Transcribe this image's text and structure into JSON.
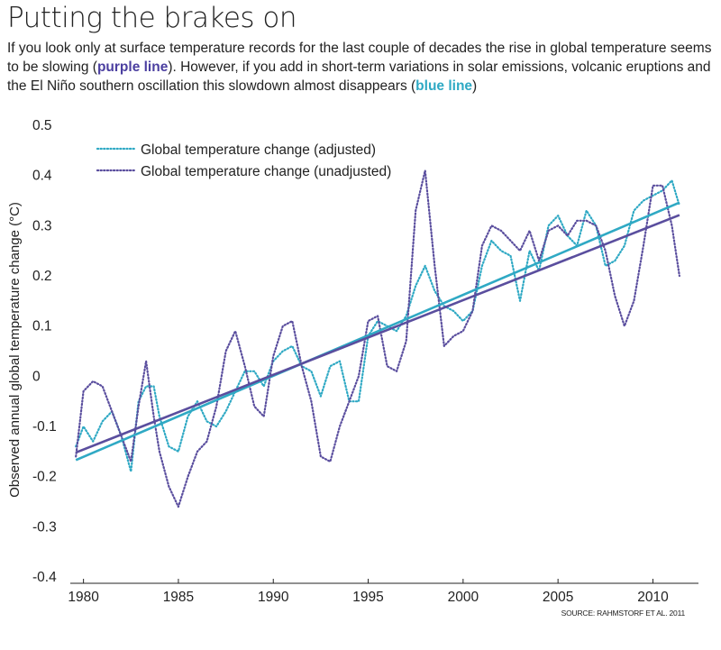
{
  "header": {
    "title": "Putting the brakes on",
    "subtitle_parts": [
      "If you look only at surface temperature records for the last couple of decades the rise in global temperature seems to be slowing (",
      "purple line",
      "). However, if you add in short-term variations in solar emissions, volcanic eruptions and the El Niño southern oscillation this slowdown almost disappears (",
      "blue line",
      ")"
    ]
  },
  "colors": {
    "purple": "#5a4e9e",
    "blue": "#2fa9c4",
    "purple_text": "#4b3fa0"
  },
  "chart_data": {
    "type": "line",
    "ylabel": "Observed annual global temperature change (°C)",
    "xlabel": "",
    "xlim": [
      1979.4,
      2012.4
    ],
    "ylim": [
      -0.4,
      0.5
    ],
    "x_ticks": [
      1980,
      1985,
      1990,
      1995,
      2000,
      2005,
      2010
    ],
    "y_ticks": [
      "0.5",
      "0.4",
      "0.3",
      "0.2",
      "0.1",
      "0",
      "-0.1",
      "-0.2",
      "-0.3",
      "-0.4"
    ],
    "y_tick_values": [
      0.5,
      0.4,
      0.3,
      0.2,
      0.1,
      0,
      -0.1,
      -0.2,
      -0.3,
      -0.4
    ],
    "grid": false,
    "legend_position": "top-left",
    "legend": [
      "Global temperature change (adjusted)",
      "Global temperature change (unadjusted)"
    ],
    "source": "SOURCE: RAHMSTORF ET AL. 2011",
    "series": [
      {
        "name": "Global temperature change (adjusted)",
        "style": "dotted",
        "color": "#2fa9c4",
        "x": [
          1979.6,
          1980.0,
          1980.5,
          1981.0,
          1981.5,
          1982.0,
          1982.5,
          1982.9,
          1983.3,
          1983.7,
          1984.0,
          1984.5,
          1985.0,
          1985.5,
          1986.0,
          1986.5,
          1987.0,
          1987.5,
          1988.0,
          1988.5,
          1989.0,
          1989.5,
          1990.0,
          1990.5,
          1991.0,
          1991.5,
          1992.0,
          1992.5,
          1993.0,
          1993.5,
          1994.0,
          1994.5,
          1995.0,
          1995.5,
          1996.0,
          1996.5,
          1997.0,
          1997.5,
          1998.0,
          1998.5,
          1999.0,
          1999.5,
          2000.0,
          2000.5,
          2001.0,
          2001.5,
          2002.0,
          2002.5,
          2003.0,
          2003.5,
          2004.0,
          2004.5,
          2005.0,
          2005.5,
          2006.0,
          2006.5,
          2007.0,
          2007.5,
          2008.0,
          2008.5,
          2009.0,
          2009.5,
          2010.0,
          2010.5,
          2011.0,
          2011.4
        ],
        "y": [
          -0.14,
          -0.1,
          -0.13,
          -0.09,
          -0.07,
          -0.12,
          -0.19,
          -0.05,
          -0.02,
          -0.02,
          -0.08,
          -0.14,
          -0.15,
          -0.08,
          -0.05,
          -0.09,
          -0.1,
          -0.07,
          -0.03,
          0.01,
          0.01,
          -0.02,
          0.03,
          0.05,
          0.06,
          0.02,
          0.01,
          -0.04,
          0.02,
          0.03,
          -0.05,
          -0.05,
          0.08,
          0.11,
          0.1,
          0.09,
          0.12,
          0.18,
          0.22,
          0.17,
          0.14,
          0.13,
          0.11,
          0.13,
          0.22,
          0.27,
          0.25,
          0.24,
          0.15,
          0.25,
          0.21,
          0.3,
          0.32,
          0.28,
          0.26,
          0.33,
          0.3,
          0.22,
          0.23,
          0.26,
          0.33,
          0.35,
          0.36,
          0.37,
          0.39,
          0.34
        ]
      },
      {
        "name": "Global temperature change (unadjusted)",
        "style": "dotted",
        "color": "#5a4e9e",
        "x": [
          1979.6,
          1980.0,
          1980.5,
          1981.0,
          1981.5,
          1982.0,
          1982.5,
          1982.9,
          1983.3,
          1983.7,
          1984.0,
          1984.5,
          1985.0,
          1985.5,
          1986.0,
          1986.5,
          1987.0,
          1987.5,
          1988.0,
          1988.5,
          1989.0,
          1989.5,
          1990.0,
          1990.5,
          1991.0,
          1991.5,
          1992.0,
          1992.5,
          1993.0,
          1993.5,
          1994.0,
          1994.5,
          1995.0,
          1995.5,
          1996.0,
          1996.5,
          1997.0,
          1997.5,
          1998.0,
          1998.5,
          1999.0,
          1999.5,
          2000.0,
          2000.5,
          2001.0,
          2001.5,
          2002.0,
          2002.5,
          2003.0,
          2003.5,
          2004.0,
          2004.5,
          2005.0,
          2005.5,
          2006.0,
          2006.5,
          2007.0,
          2007.5,
          2008.0,
          2008.5,
          2009.0,
          2009.5,
          2010.0,
          2010.5,
          2011.0,
          2011.4
        ],
        "y": [
          -0.16,
          -0.03,
          -0.01,
          -0.02,
          -0.07,
          -0.12,
          -0.17,
          -0.06,
          0.03,
          -0.08,
          -0.15,
          -0.22,
          -0.26,
          -0.2,
          -0.15,
          -0.13,
          -0.06,
          0.05,
          0.09,
          0.02,
          -0.06,
          -0.08,
          0.04,
          0.1,
          0.11,
          0.02,
          -0.05,
          -0.16,
          -0.17,
          -0.1,
          -0.05,
          0.0,
          0.11,
          0.12,
          0.02,
          0.01,
          0.07,
          0.33,
          0.41,
          0.22,
          0.06,
          0.08,
          0.09,
          0.13,
          0.26,
          0.3,
          0.29,
          0.27,
          0.25,
          0.29,
          0.23,
          0.29,
          0.3,
          0.28,
          0.31,
          0.31,
          0.3,
          0.25,
          0.16,
          0.1,
          0.15,
          0.26,
          0.38,
          0.38,
          0.3,
          0.2
        ]
      },
      {
        "name": "",
        "style": "solid",
        "color": "#2fa9c4",
        "x": [
          1979.6,
          2011.4
        ],
        "y": [
          -0.167,
          0.346
        ]
      },
      {
        "name": "",
        "style": "solid",
        "color": "#5a4e9e",
        "x": [
          1979.6,
          2011.4
        ],
        "y": [
          -0.152,
          0.321
        ]
      }
    ]
  }
}
